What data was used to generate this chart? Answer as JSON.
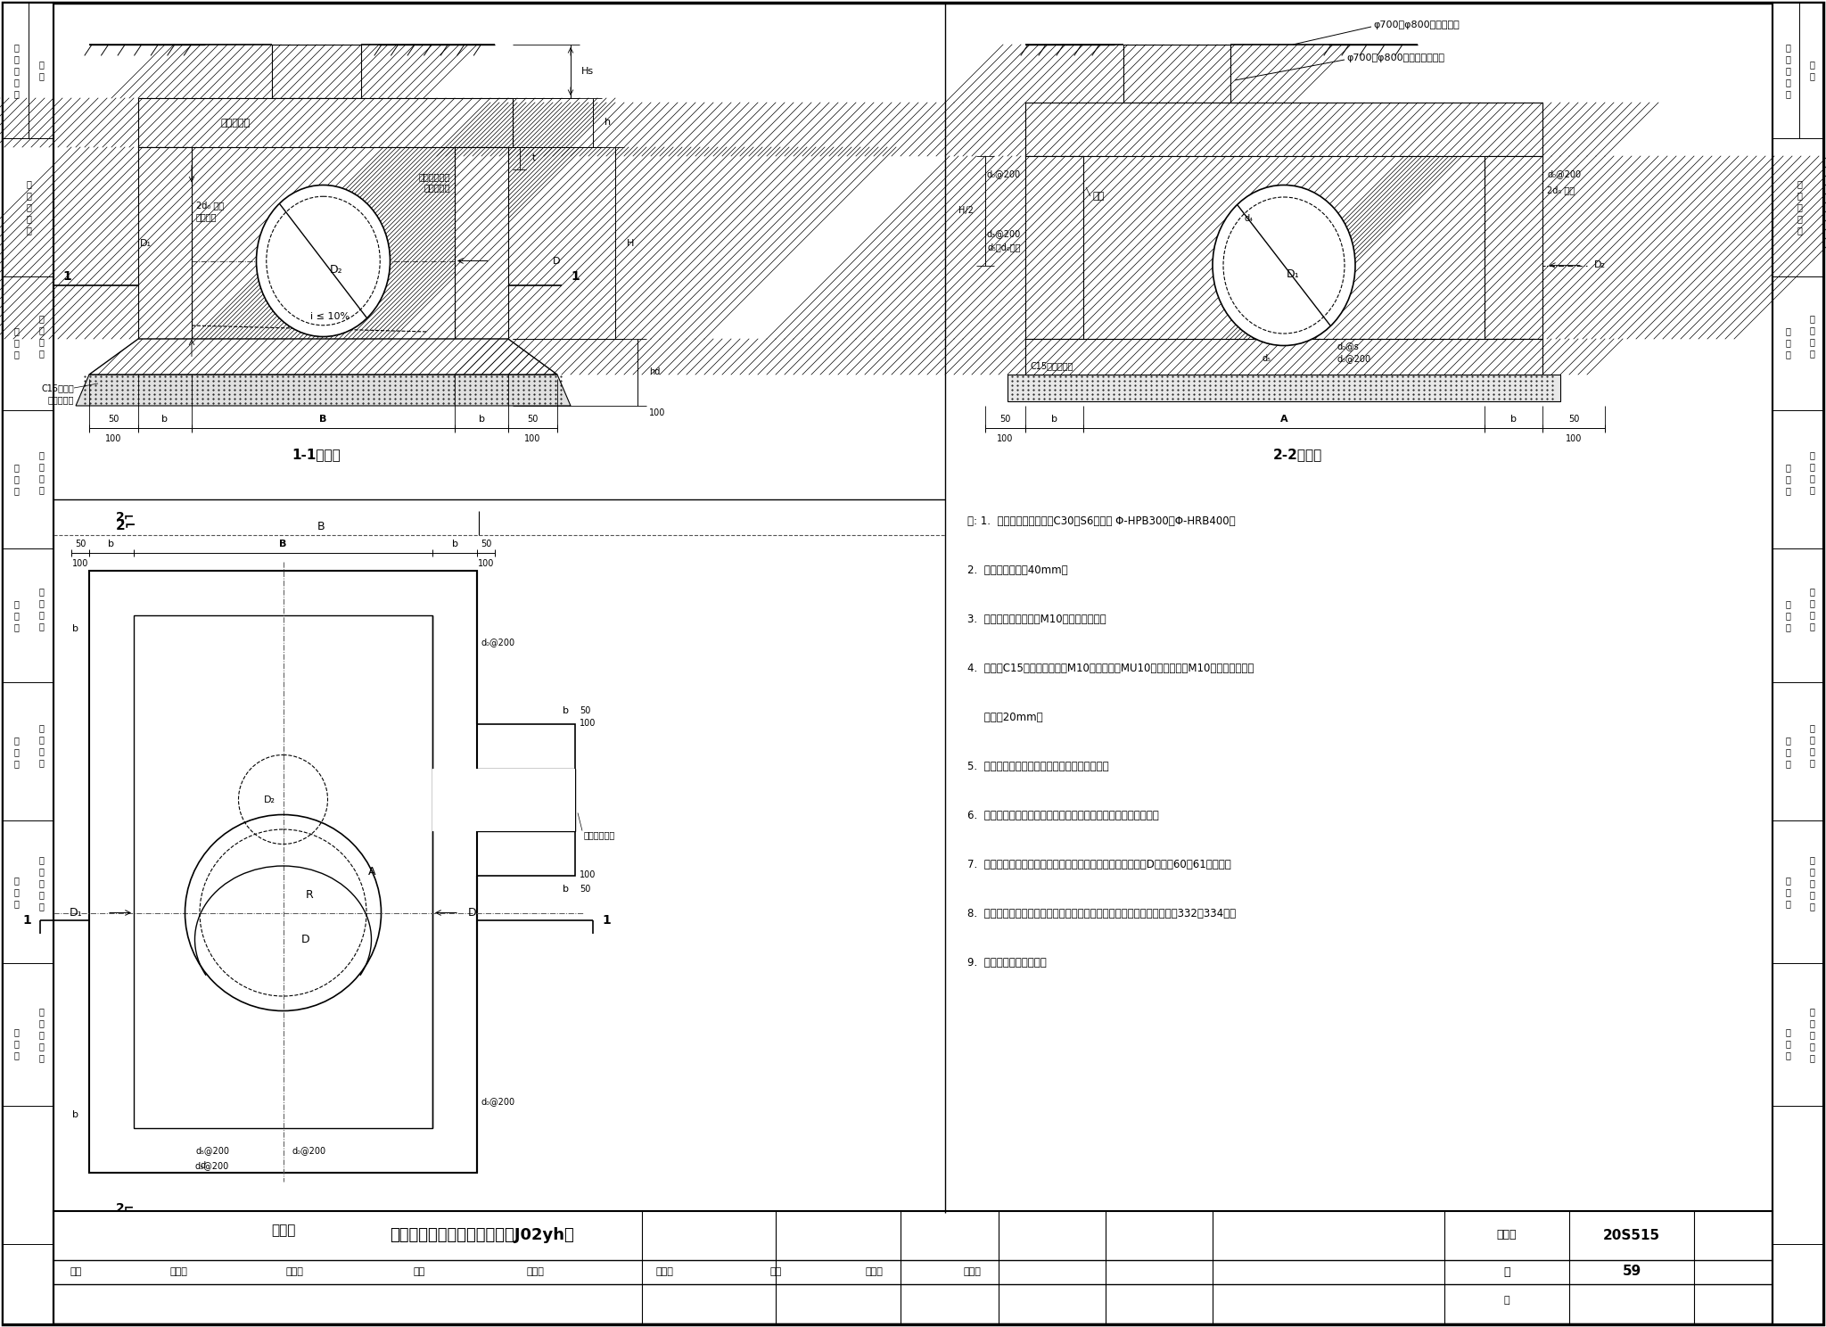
{
  "page_bg": "#ffffff",
  "highlight_color": "#b3e5fc",
  "bottom_title": "矩形三通混凝土雨水检查井（J02yh）",
  "atlas_no": "图集号",
  "atlas_value": "20S515",
  "page_number": "59",
  "notes": [
    "注: 1.  井墙及底板混凝土为C30、S6；钉筋 Φ-HPB300、Φ-HRB400。",
    "2.  混凝土保护层厘40mm。",
    "3.  坐浆、抹三角灿均用M10防水水泥砂浆。",
    "4.  流槽用C15混凝土浇筑或用M10水泥砂浆砖MU10流槽专用砖，M10防水水泥砂浆抹",
    "     面，厘20mm。",
    "5.  接入管道掘换部分用混凝土或级配砂石填实。",
    "6.  管道与墙体、底板间隙应用混凝土浇筑或砂浆塡实，排压严密。",
    "7.  图中井室尺寸、适用条件、盖板型号及干管、支管管径应据D値查第60、61页确定。",
    "8.  流槽部分在安放蹏步的同側加设脚窝，蹏步及脚窝布置、蹏步安装见第332、334页。",
    "9.  其他要求详见总说明。"
  ],
  "sidebar_left_texts": [
    [
      "检",
      "选",
      "用",
      "井",
      "表"
    ],
    [
      "井型"
    ],
    [
      "圆形检查井"
    ],
    [
      "检查井"
    ],
    [
      "矩形直线"
    ],
    [
      "检查井"
    ],
    [
      "矩形三通"
    ],
    [
      "检查井"
    ],
    [
      "矩形四通"
    ],
    [
      "检查井"
    ],
    [
      "异型三通"
    ],
    [
      "检查井"
    ],
    [
      "矩形小三通"
    ],
    [
      "检查井"
    ],
    [
      "矩形小四通"
    ]
  ]
}
